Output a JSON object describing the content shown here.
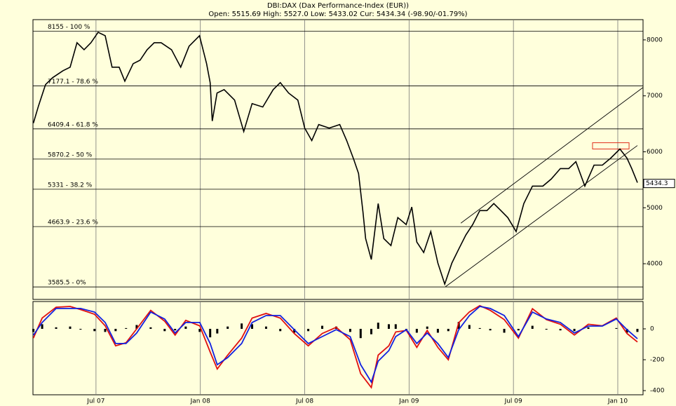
{
  "chart_data": [
    {
      "type": "line",
      "title": "DBI:DAX (Dax Performance-Index (EUR))",
      "subtitle": "Open: 5515.69 High: 5527.0 Low: 5433.02 Cur: 5434.34 (-98.90/-01.79%)",
      "color": "#000000",
      "x": [
        2007.2,
        2007.225,
        2007.258,
        2007.292,
        2007.342,
        2007.376,
        2007.409,
        2007.443,
        2007.476,
        2007.51,
        2007.544,
        2007.577,
        2007.611,
        2007.638,
        2007.678,
        2007.711,
        2007.745,
        2007.779,
        2007.812,
        2007.862,
        2007.906,
        2007.946,
        2007.996,
        2008.03,
        2008.047,
        2008.057,
        2008.08,
        2008.114,
        2008.164,
        2008.208,
        2008.248,
        2008.299,
        2008.349,
        2008.383,
        2008.423,
        2008.467,
        2008.5,
        2008.534,
        2008.567,
        2008.617,
        2008.668,
        2008.701,
        2008.735,
        2008.758,
        2008.779,
        2008.792,
        2008.819,
        2008.852,
        2008.879,
        2008.913,
        2008.946,
        2008.986,
        2009.013,
        2009.037,
        2009.07,
        2009.104,
        2009.138,
        2009.171,
        2009.205,
        2009.238,
        2009.272,
        2009.305,
        2009.339,
        2009.373,
        2009.406,
        2009.44,
        2009.473,
        2009.513,
        2009.55,
        2009.591,
        2009.641,
        2009.681,
        2009.725,
        2009.765,
        2009.799,
        2009.842,
        2009.886,
        2009.926,
        2009.966,
        2010.01,
        2010.044,
        2010.067,
        2010.094
      ],
      "values": [
        6512,
        6825,
        7200,
        7325,
        7450,
        7512,
        7950,
        7825,
        7950,
        8137,
        8075,
        7512,
        7512,
        7262,
        7575,
        7637,
        7825,
        7950,
        7950,
        7825,
        7512,
        7887,
        8075,
        7575,
        7237,
        6550,
        7050,
        7112,
        6925,
        6362,
        6862,
        6800,
        7112,
        7237,
        7050,
        6925,
        6425,
        6200,
        6487,
        6425,
        6487,
        6200,
        5862,
        5612,
        4925,
        4450,
        4075,
        5075,
        4450,
        4325,
        4825,
        4700,
        5012,
        4387,
        4200,
        4575,
        4012,
        3637,
        4012,
        4262,
        4512,
        4700,
        4950,
        4950,
        5075,
        4950,
        4825,
        4575,
        5075,
        5387,
        5387,
        5512,
        5700,
        5700,
        5825,
        5387,
        5762,
        5762,
        5887,
        6050,
        5887,
        5700,
        5450
      ],
      "xlim": [
        2007.198,
        2010.121
      ],
      "ylim": [
        3362,
        8362
      ],
      "xticks": [
        {
          "value": 2007.5,
          "label": "Jul 07"
        },
        {
          "value": 2008.0,
          "label": "Jan 08"
        },
        {
          "value": 2008.5,
          "label": "Jul 08"
        },
        {
          "value": 2009.0,
          "label": "Jan 09"
        },
        {
          "value": 2009.5,
          "label": "Jul 09"
        },
        {
          "value": 2010.0,
          "label": "Jan 10"
        }
      ],
      "yticks": [
        4000,
        5000,
        6000,
        7000,
        8000
      ],
      "grid": true,
      "fib_levels": [
        {
          "value": 8155,
          "label": "8155 - 100 %"
        },
        {
          "value": 7177.1,
          "label": "7177.1 - 78.6 %"
        },
        {
          "value": 6409.4,
          "label": "6409.4 - 61.8 %"
        },
        {
          "value": 5870.2,
          "label": "5870.2 - 50 %"
        },
        {
          "value": 5331,
          "label": "5331 - 38.2 %"
        },
        {
          "value": 4663.9,
          "label": "4663.9 - 23.6 %"
        },
        {
          "value": 3585.5,
          "label": "3585.5 - 0%"
        }
      ],
      "trend_lines": [
        {
          "x": [
            2009.248,
            2010.121
          ],
          "y": [
            4725,
            7150
          ]
        },
        {
          "x": [
            2009.174,
            2010.094
          ],
          "y": [
            3587.5,
            6112
          ]
        }
      ],
      "highlight": {
        "x": [
          2009.879,
          2010.054
        ],
        "y": [
          6050,
          6162
        ],
        "color": "#e03020"
      },
      "last_price": 5434.3
    },
    {
      "type": "indicator",
      "x": [
        2007.2,
        2007.242,
        2007.309,
        2007.376,
        2007.426,
        2007.493,
        2007.544,
        2007.594,
        2007.644,
        2007.695,
        2007.762,
        2007.829,
        2007.879,
        2007.93,
        2007.997,
        2008.047,
        2008.081,
        2008.131,
        2008.198,
        2008.248,
        2008.315,
        2008.383,
        2008.45,
        2008.517,
        2008.584,
        2008.651,
        2008.718,
        2008.768,
        2008.819,
        2008.852,
        2008.903,
        2008.936,
        2008.987,
        2009.037,
        2009.087,
        2009.138,
        2009.188,
        2009.238,
        2009.289,
        2009.339,
        2009.389,
        2009.456,
        2009.524,
        2009.591,
        2009.658,
        2009.725,
        2009.792,
        2009.859,
        2009.926,
        2009.993,
        2010.044,
        2010.094
      ],
      "xlim": [
        2007.198,
        2010.121
      ],
      "ylim": [
        -427,
        177
      ],
      "yticks": [
        0,
        -200,
        -400
      ],
      "series": [
        {
          "kind": "bar",
          "color": "#000000",
          "values": [
            -20,
            30,
            10,
            15,
            -5,
            -15,
            -20,
            -15,
            5,
            25,
            10,
            -15,
            -10,
            15,
            -20,
            -55,
            -30,
            15,
            35,
            30,
            15,
            -15,
            -25,
            -15,
            20,
            15,
            -20,
            -60,
            -35,
            40,
            30,
            30,
            -5,
            -25,
            15,
            -25,
            -15,
            45,
            25,
            5,
            -10,
            -25,
            -10,
            20,
            -5,
            -10,
            -15,
            10,
            0,
            5,
            -25,
            -20
          ]
        },
        {
          "kind": "line",
          "color": "#e01010",
          "values": [
            -60,
            70,
            140,
            145,
            125,
            95,
            20,
            -110,
            -90,
            0,
            120,
            50,
            -40,
            55,
            20,
            -150,
            -260,
            -170,
            -60,
            70,
            100,
            70,
            -30,
            -110,
            -30,
            10,
            -70,
            -290,
            -380,
            -170,
            -110,
            -20,
            -10,
            -120,
            -10,
            -120,
            -200,
            40,
            110,
            150,
            120,
            60,
            -60,
            130,
            60,
            30,
            -40,
            30,
            20,
            70,
            -30,
            -85
          ]
        },
        {
          "kind": "line",
          "color": "#1020e0",
          "values": [
            -41,
            41,
            132,
            132,
            132,
            109,
            41,
            -95,
            -95,
            -27,
            109,
            64,
            -27,
            41,
            41,
            -95,
            -232,
            -186,
            -95,
            41,
            86,
            86,
            -5,
            -95,
            -50,
            -5,
            -50,
            -232,
            -345,
            -209,
            -141,
            -50,
            -5,
            -95,
            -27,
            -95,
            -186,
            -5,
            86,
            145,
            132,
            86,
            -50,
            109,
            64,
            41,
            -27,
            18,
            18,
            64,
            -5,
            -64
          ]
        }
      ]
    }
  ]
}
